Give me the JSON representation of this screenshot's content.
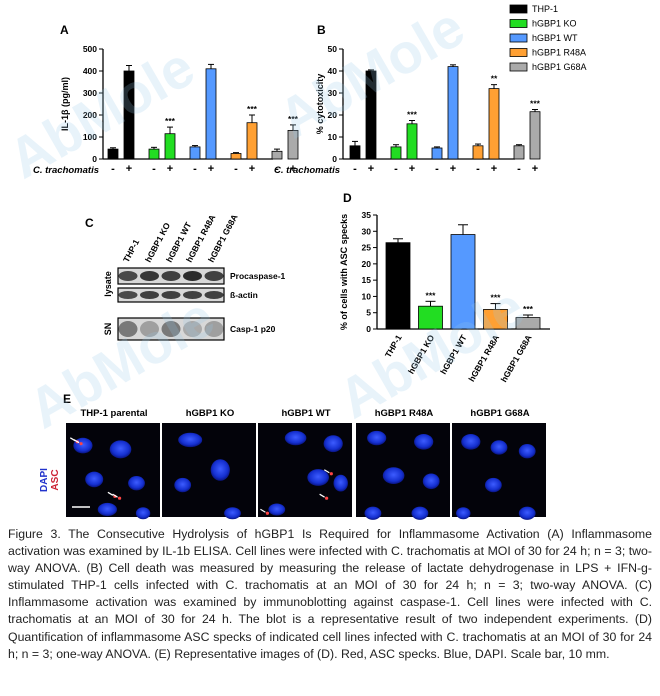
{
  "figure": {
    "watermark": "AbMole",
    "legend": [
      {
        "name": "THP-1",
        "color": "#000000"
      },
      {
        "name": "hGBP1 KO",
        "color": "#22dd22"
      },
      {
        "name": "hGBP1 WT",
        "color": "#5599ff"
      },
      {
        "name": "hGBP1 R48A",
        "color": "#ffa033"
      },
      {
        "name": "hGBP1 G68A",
        "color": "#aaaaaa"
      }
    ],
    "panel_c": {
      "label": "C",
      "lanes": [
        "THP-1",
        "hGBP1 KO",
        "hGBP1 WT",
        "hGBP1 R48A",
        "hGBP1 G68A"
      ],
      "groups": [
        "lysate",
        "SN"
      ],
      "bands": [
        "Procaspase-1",
        "ß-actin",
        "Casp-1 p20"
      ]
    },
    "panel_e": {
      "label": "E",
      "titles": [
        "THP-1 parental",
        "hGBP1 KO",
        "hGBP1 WT",
        "hGBP1 R48A",
        "hGBP1 G68A"
      ],
      "stain_dapi": "DAPI",
      "stain_asc": "ASC"
    }
  },
  "chart_data": [
    {
      "panel": "A",
      "type": "bar",
      "ylabel": "IL-1β (pg/ml)",
      "ylim": [
        0,
        500
      ],
      "yticks": [
        0,
        100,
        200,
        300,
        400,
        500
      ],
      "xlabel": "C. trachomatis",
      "conditions": [
        "-",
        "+"
      ],
      "groups": [
        "THP-1",
        "hGBP1 KO",
        "hGBP1 WT",
        "hGBP1 R48A",
        "hGBP1 G68A"
      ],
      "values": [
        [
          45,
          400
        ],
        [
          45,
          115
        ],
        [
          55,
          410
        ],
        [
          25,
          165
        ],
        [
          35,
          130
        ]
      ],
      "errors": [
        [
          6,
          25
        ],
        [
          8,
          30
        ],
        [
          6,
          20
        ],
        [
          4,
          35
        ],
        [
          10,
          25
        ]
      ],
      "significance": [
        "",
        "***",
        "",
        "***",
        "***"
      ]
    },
    {
      "panel": "B",
      "type": "bar",
      "ylabel": "% cytotoxicity",
      "ylim": [
        0,
        50
      ],
      "yticks": [
        0,
        10,
        20,
        30,
        40,
        50
      ],
      "xlabel": "C. trachomatis",
      "conditions": [
        "-",
        "+"
      ],
      "groups": [
        "THP-1",
        "hGBP1 KO",
        "hGBP1 WT",
        "hGBP1 R48A",
        "hGBP1 G68A"
      ],
      "values": [
        [
          6,
          40
        ],
        [
          5.5,
          16
        ],
        [
          5,
          42
        ],
        [
          6,
          32
        ],
        [
          6,
          21.5
        ]
      ],
      "errors": [
        [
          2,
          0.5
        ],
        [
          1,
          1.5
        ],
        [
          0.5,
          0.8
        ],
        [
          0.8,
          1.8
        ],
        [
          0.5,
          1
        ]
      ],
      "significance": [
        "",
        "***",
        "",
        "**",
        "***"
      ]
    },
    {
      "panel": "D",
      "type": "bar",
      "ylabel": "% of cells with ASC specks",
      "ylim": [
        0,
        35
      ],
      "yticks": [
        0,
        5,
        10,
        15,
        20,
        25,
        30,
        35
      ],
      "categories": [
        "THP-1",
        "hGBP1 KO",
        "hGBP1 WT",
        "hGBP1 R48A",
        "hGBP1 G68A"
      ],
      "values": [
        26.5,
        7,
        29,
        6,
        3.5
      ],
      "errors": [
        1.2,
        1.5,
        3,
        1.8,
        0.8
      ],
      "significance": [
        "",
        "***",
        "",
        "***",
        "***"
      ]
    }
  ],
  "caption": "Figure 3. The Consecutive Hydrolysis of hGBP1 Is Required for Inflammasome Activation (A) Inflammasome activation was examined by IL-1b ELISA. Cell lines were infected with C. trachomatis at MOI of 30 for 24 h; n = 3; two-way ANOVA. (B) Cell death was measured by measuring the release of lactate dehydrogenase in LPS + IFN-g-stimulated THP-1 cells infected with C. trachomatis at an MOI of 30 for 24 h; n = 3; two-way ANOVA. (C) Inflammasome activation was examined by immunoblotting against caspase-1. Cell lines were infected with C. trachomatis at an MOI of 30 for 24 h. The blot is a representative result of two independent experiments. (D) Quantification of inflammasome ASC specks of indicated cell lines infected with C. trachomatis at an MOI of 30 for 24 h; n = 3; one-way ANOVA. (E) Representative images of (D). Red, ASC specks. Blue, DAPI. Scale bar, 10 mm."
}
